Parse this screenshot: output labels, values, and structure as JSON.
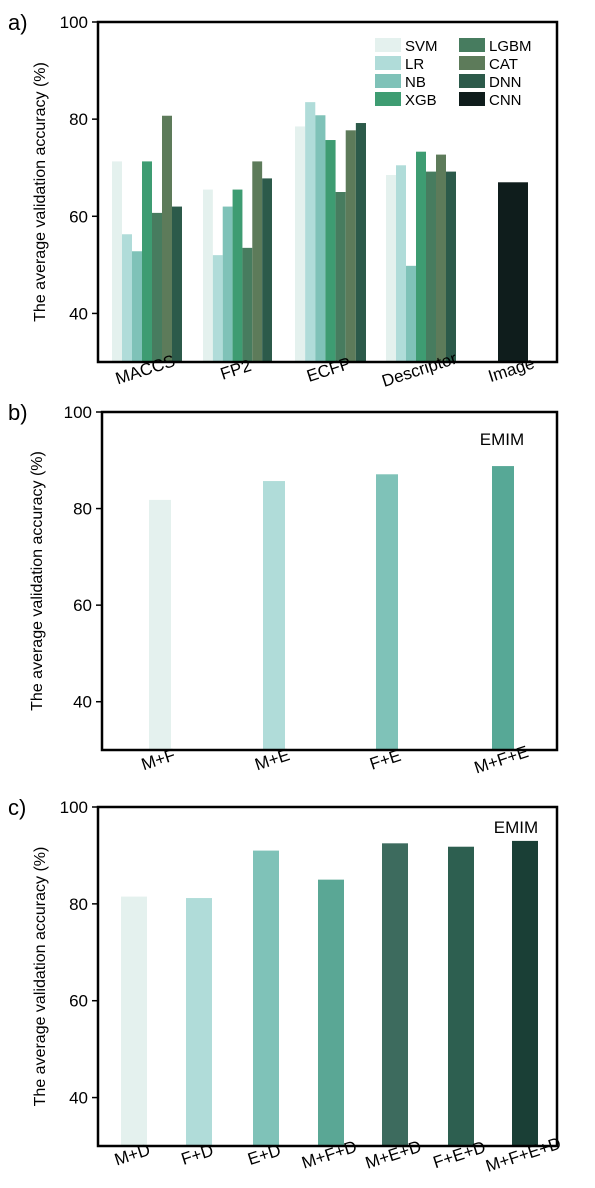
{
  "chart_data": [
    {
      "panel_label": "a)",
      "type": "bar",
      "ylabel": "The average validation accuracy (%)",
      "ylim": [
        30,
        100
      ],
      "yticks": [
        40,
        60,
        80,
        100
      ],
      "categories": [
        "MACCS",
        "FP2",
        "ECFP",
        "Descriptor",
        "Image"
      ],
      "legend_position": "top-right",
      "series": [
        {
          "name": "SVM",
          "color": "#e4f1ee",
          "values": [
            71.3,
            65.5,
            78.5,
            68.5,
            null
          ]
        },
        {
          "name": "LR",
          "color": "#b0dcd9",
          "values": [
            56.3,
            52.0,
            83.5,
            70.5,
            null
          ]
        },
        {
          "name": "NB",
          "color": "#7fc2b8",
          "values": [
            52.8,
            62.0,
            80.8,
            49.8,
            null
          ]
        },
        {
          "name": "XGB",
          "color": "#3e9c72",
          "values": [
            71.3,
            65.5,
            75.7,
            73.3,
            null
          ]
        },
        {
          "name": "LGBM",
          "color": "#477c5f",
          "values": [
            60.7,
            53.5,
            65.0,
            69.2,
            null
          ]
        },
        {
          "name": "CAT",
          "color": "#5d7b5a",
          "values": [
            80.7,
            71.3,
            77.7,
            72.7,
            null
          ]
        },
        {
          "name": "DNN",
          "color": "#2c5a4a",
          "values": [
            62.0,
            67.8,
            79.2,
            69.2,
            null
          ]
        },
        {
          "name": "CNN",
          "color": "#0f1d1c",
          "values": [
            null,
            null,
            null,
            null,
            67.0
          ]
        }
      ]
    },
    {
      "panel_label": "b)",
      "type": "bar",
      "ylabel": "The average validation accuracy (%)",
      "ylim": [
        30,
        100
      ],
      "yticks": [
        40,
        60,
        80,
        100
      ],
      "annotation": "EMIM",
      "categories": [
        "M+F",
        "M+E",
        "F+E",
        "M+F+E"
      ],
      "values": [
        81.8,
        85.7,
        87.1,
        88.8
      ],
      "colors": [
        "#e4f1ee",
        "#b0dcd9",
        "#7fc2b8",
        "#57a896"
      ]
    },
    {
      "panel_label": "c)",
      "type": "bar",
      "ylabel": "The average validation accuracy (%)",
      "ylim": [
        30,
        100
      ],
      "yticks": [
        40,
        60,
        80,
        100
      ],
      "annotation": "EMIM",
      "categories": [
        "M+D",
        "F+D",
        "E+D",
        "M+F+D",
        "M+E+D",
        "F+E+D",
        "M+F+E+D"
      ],
      "values": [
        81.5,
        81.2,
        91.0,
        85.0,
        92.5,
        91.8,
        93.0
      ],
      "colors": [
        "#e4f1ee",
        "#b0dcd9",
        "#7fc2b8",
        "#5aa795",
        "#3d6b5e",
        "#2d5f50",
        "#1a3f36"
      ]
    }
  ]
}
